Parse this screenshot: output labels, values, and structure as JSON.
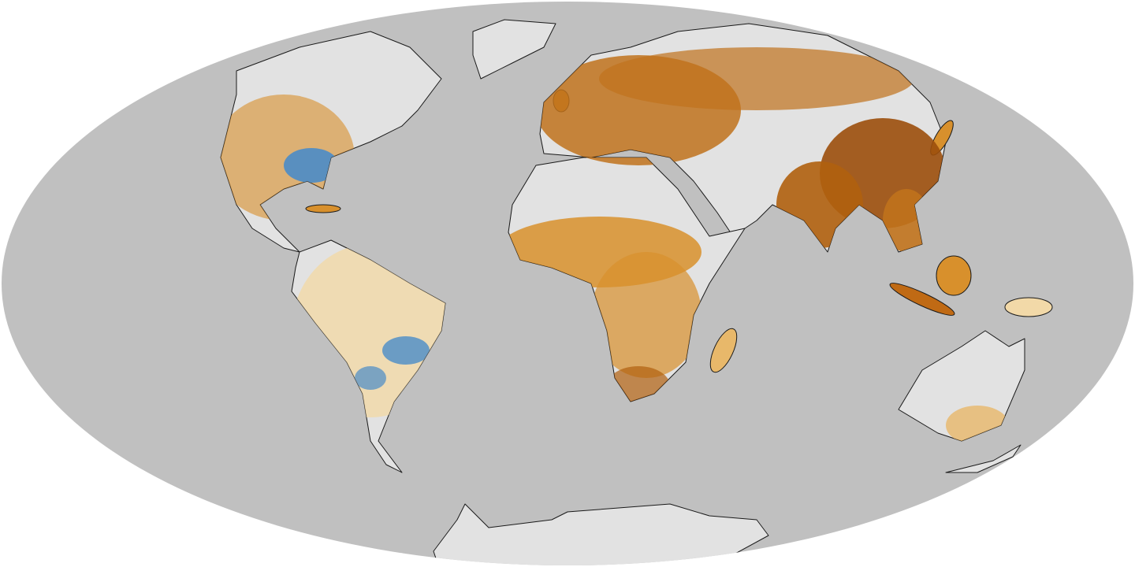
{
  "map": {
    "projection": "mollweide",
    "colors": {
      "background": "#ffffff",
      "ocean": "#c0c0c0",
      "land_no_data": "#e2e2e2",
      "coastline": "#1a1a1a",
      "increase_light": "#f2d9a8",
      "increase_medium": "#d8902c",
      "increase_strong": "#9c4f0c",
      "decrease": "#4a8cc8"
    },
    "regions": [
      {
        "name": "north-america",
        "tint": "increase_medium"
      },
      {
        "name": "eastern-united-states",
        "tint": "decrease"
      },
      {
        "name": "south-america",
        "tint": "increase_light"
      },
      {
        "name": "central-brazil",
        "tint": "decrease"
      },
      {
        "name": "europe",
        "tint": "increase_medium"
      },
      {
        "name": "east-asia",
        "tint": "increase_strong"
      },
      {
        "name": "india",
        "tint": "increase_strong"
      },
      {
        "name": "africa-sahel",
        "tint": "increase_medium"
      },
      {
        "name": "australia",
        "tint": "increase_light"
      }
    ]
  }
}
